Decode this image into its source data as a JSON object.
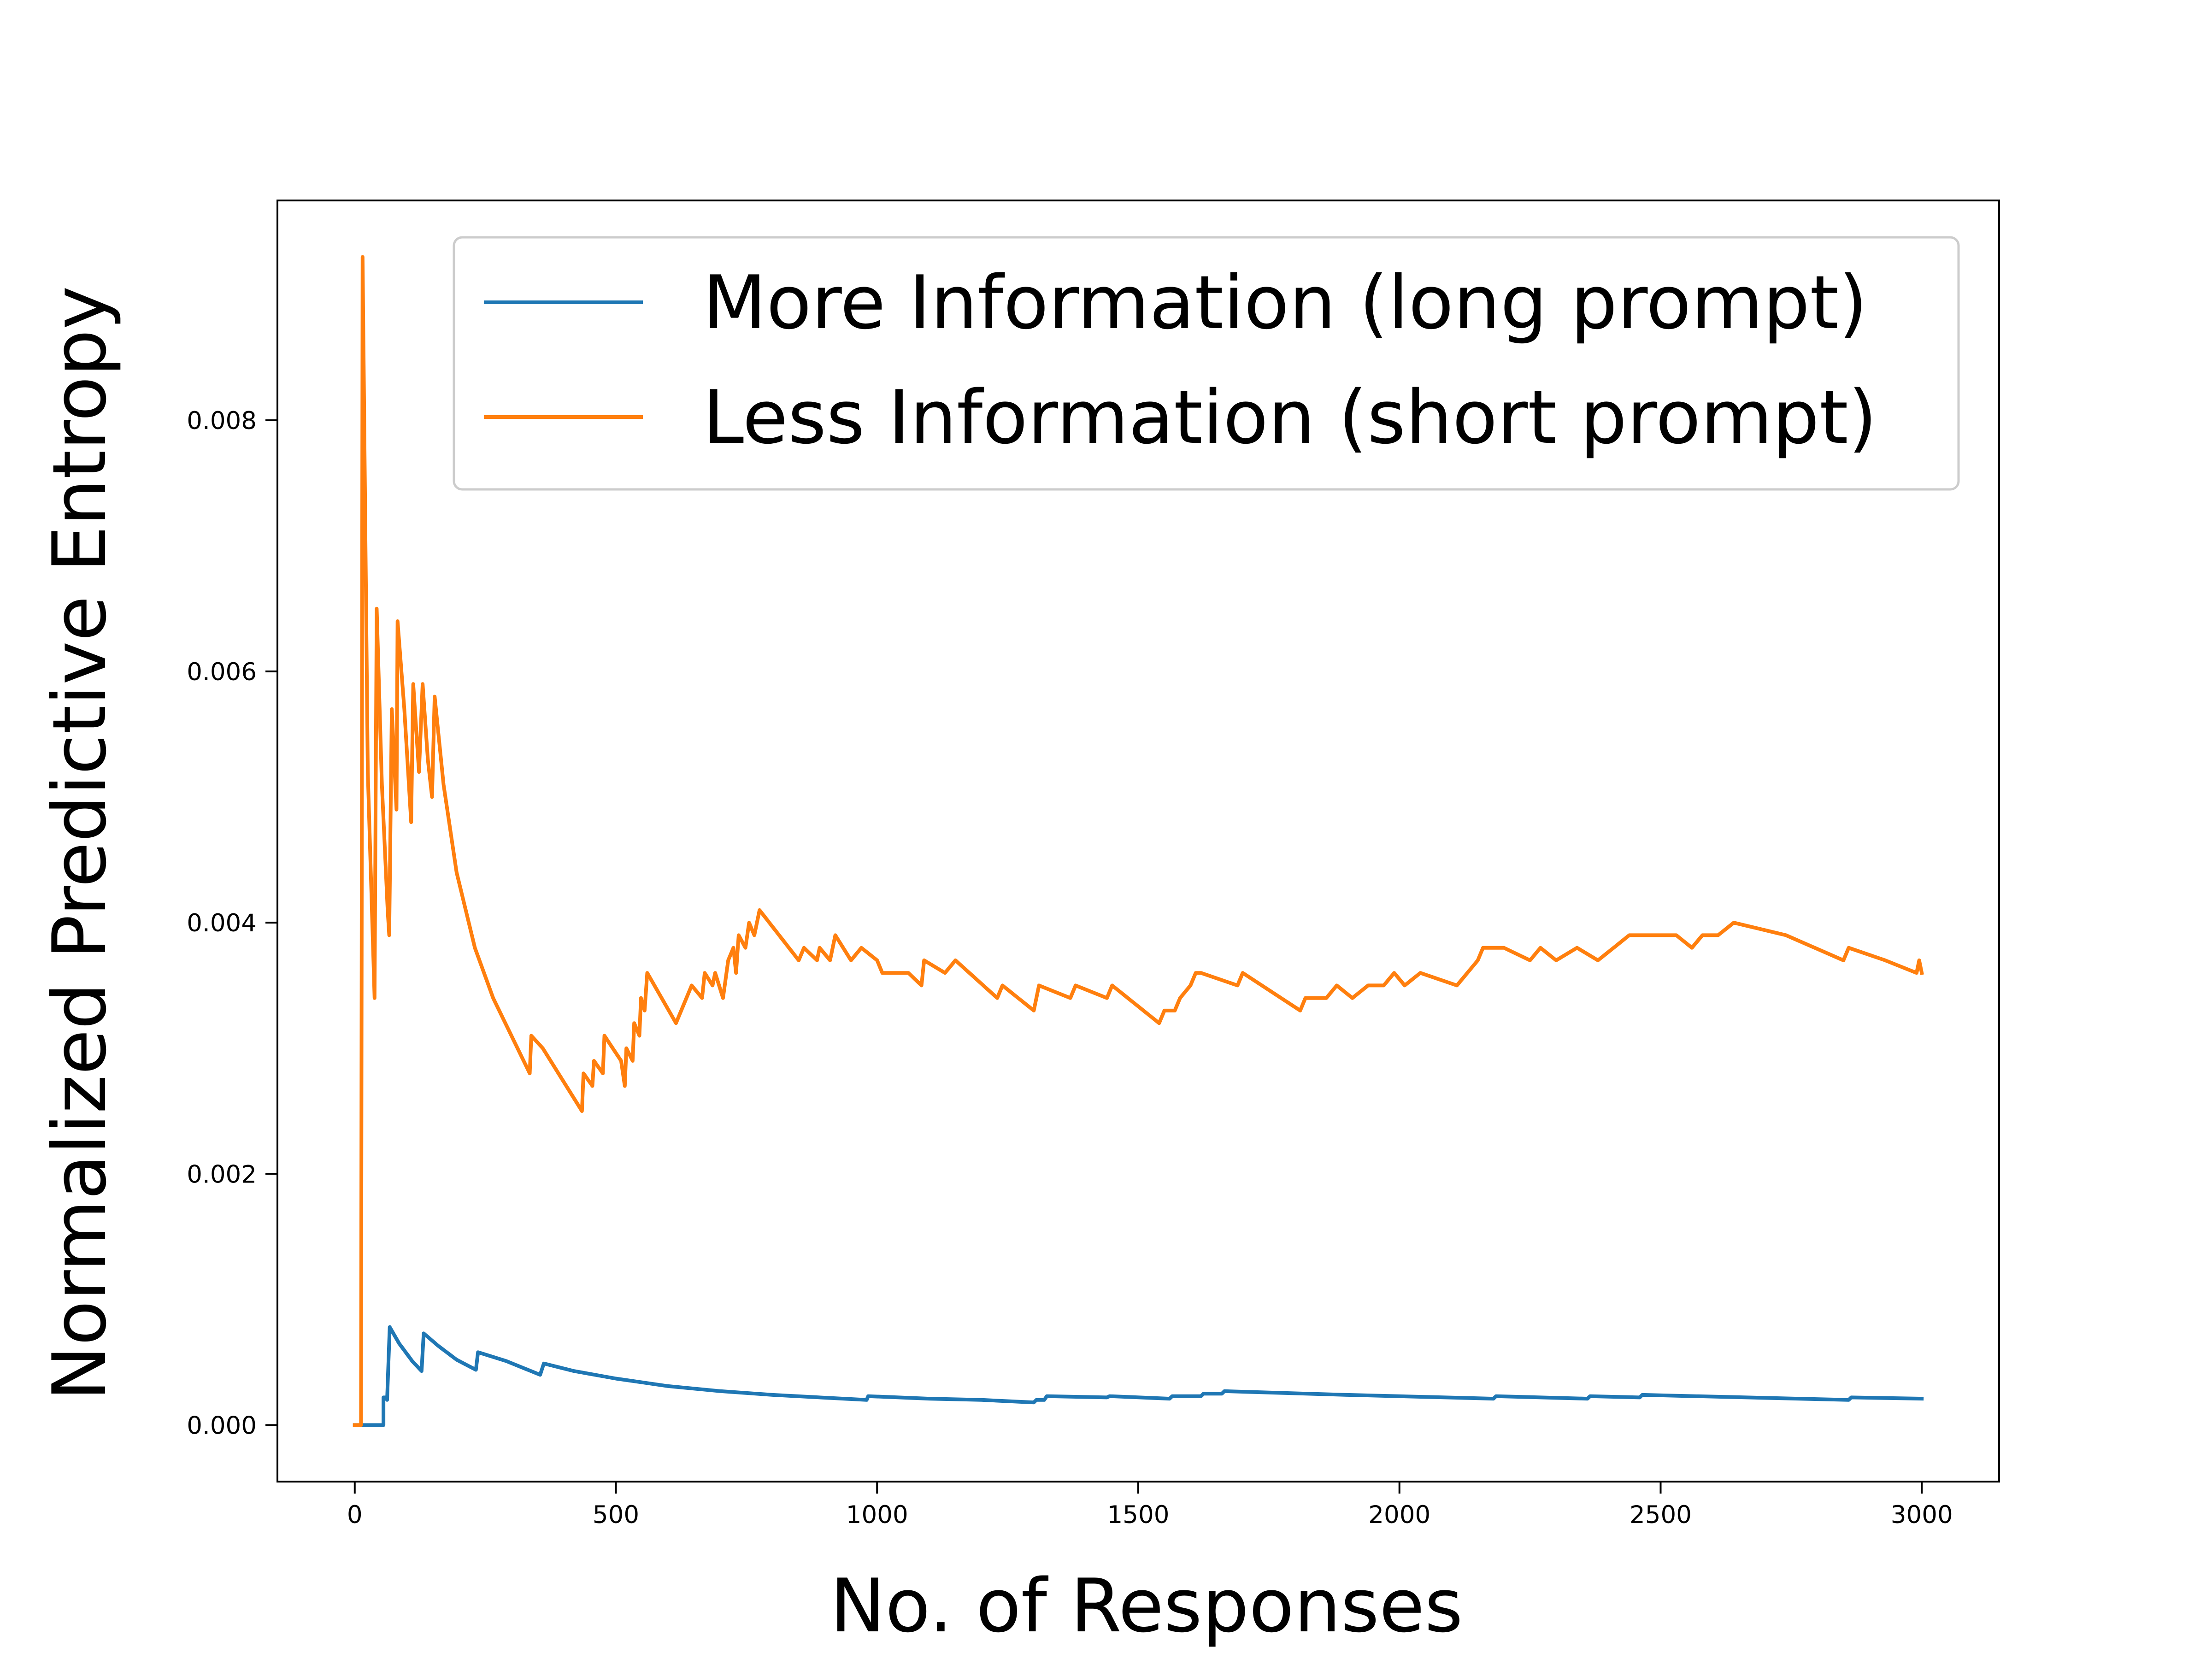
{
  "chart_data": {
    "type": "line",
    "title": "",
    "xlabel": "No. of Responses",
    "ylabel": "Normalized Predictive Entropy",
    "xlim": [
      -148,
      3148
    ],
    "ylim": [
      -0.00045,
      0.00975
    ],
    "x_ticks": [
      0,
      500,
      1000,
      1500,
      2000,
      2500,
      3000
    ],
    "y_ticks": [
      0.0,
      0.002,
      0.004,
      0.006,
      0.008
    ],
    "x_tick_labels": [
      "0",
      "500",
      "1000",
      "1500",
      "2000",
      "2500",
      "3000"
    ],
    "y_tick_labels": [
      "0.000",
      "0.002",
      "0.004",
      "0.006",
      "0.008"
    ],
    "grid": false,
    "legend_position": "top-right",
    "series": [
      {
        "name": "More Information (long prompt)",
        "color": "#1f77b4",
        "points": [
          [
            0,
            0.0
          ],
          [
            55,
            0.0
          ],
          [
            55,
            0.00022
          ],
          [
            62,
            0.00022
          ],
          [
            62,
            0.0002
          ],
          [
            67,
            0.00078
          ],
          [
            85,
            0.00065
          ],
          [
            110,
            0.00051
          ],
          [
            128,
            0.00043
          ],
          [
            132,
            0.00073
          ],
          [
            160,
            0.00063
          ],
          [
            195,
            0.00052
          ],
          [
            232,
            0.00044
          ],
          [
            236,
            0.00058
          ],
          [
            290,
            0.00051
          ],
          [
            355,
            0.0004
          ],
          [
            362,
            0.00049
          ],
          [
            420,
            0.00043
          ],
          [
            500,
            0.00037
          ],
          [
            600,
            0.00031
          ],
          [
            700,
            0.00027
          ],
          [
            800,
            0.00024
          ],
          [
            980,
            0.0002
          ],
          [
            983,
            0.00023
          ],
          [
            1100,
            0.00021
          ],
          [
            1200,
            0.0002
          ],
          [
            1300,
            0.00018
          ],
          [
            1305,
            0.0002
          ],
          [
            1320,
            0.0002
          ],
          [
            1325,
            0.00023
          ],
          [
            1440,
            0.00022
          ],
          [
            1445,
            0.00023
          ],
          [
            1560,
            0.00021
          ],
          [
            1565,
            0.00023
          ],
          [
            1620,
            0.00023
          ],
          [
            1625,
            0.00025
          ],
          [
            1660,
            0.00025
          ],
          [
            1665,
            0.00027
          ],
          [
            1900,
            0.00024
          ],
          [
            2180,
            0.00021
          ],
          [
            2185,
            0.00023
          ],
          [
            2360,
            0.00021
          ],
          [
            2365,
            0.00023
          ],
          [
            2460,
            0.00022
          ],
          [
            2465,
            0.00024
          ],
          [
            2860,
            0.0002
          ],
          [
            2865,
            0.00022
          ],
          [
            3000,
            0.00021
          ]
        ]
      },
      {
        "name": "Less Information (short prompt)",
        "color": "#ff7f0e",
        "points": [
          [
            0,
            0.0
          ],
          [
            12,
            0.0
          ],
          [
            15,
            0.0093
          ],
          [
            25,
            0.0052
          ],
          [
            30,
            0.0045
          ],
          [
            38,
            0.0034
          ],
          [
            42,
            0.0065
          ],
          [
            52,
            0.0051
          ],
          [
            63,
            0.0041
          ],
          [
            66,
            0.0039
          ],
          [
            71,
            0.0057
          ],
          [
            80,
            0.0049
          ],
          [
            82,
            0.0064
          ],
          [
            95,
            0.0057
          ],
          [
            108,
            0.0048
          ],
          [
            112,
            0.0059
          ],
          [
            123,
            0.0052
          ],
          [
            130,
            0.0059
          ],
          [
            140,
            0.0053
          ],
          [
            148,
            0.005
          ],
          [
            153,
            0.0058
          ],
          [
            170,
            0.0051
          ],
          [
            195,
            0.0044
          ],
          [
            230,
            0.0038
          ],
          [
            265,
            0.0034
          ],
          [
            300,
            0.0031
          ],
          [
            335,
            0.0028
          ],
          [
            338,
            0.0031
          ],
          [
            360,
            0.003
          ],
          [
            390,
            0.0028
          ],
          [
            435,
            0.0025
          ],
          [
            438,
            0.0028
          ],
          [
            455,
            0.0027
          ],
          [
            458,
            0.0029
          ],
          [
            475,
            0.0028
          ],
          [
            478,
            0.0031
          ],
          [
            510,
            0.0029
          ],
          [
            517,
            0.0027
          ],
          [
            520,
            0.003
          ],
          [
            532,
            0.0029
          ],
          [
            535,
            0.0032
          ],
          [
            545,
            0.0031
          ],
          [
            548,
            0.0034
          ],
          [
            555,
            0.0033
          ],
          [
            560,
            0.0036
          ],
          [
            615,
            0.0032
          ],
          [
            645,
            0.0035
          ],
          [
            665,
            0.0034
          ],
          [
            670,
            0.0036
          ],
          [
            685,
            0.0035
          ],
          [
            690,
            0.0036
          ],
          [
            705,
            0.0034
          ],
          [
            715,
            0.0037
          ],
          [
            725,
            0.0038
          ],
          [
            730,
            0.0036
          ],
          [
            735,
            0.0039
          ],
          [
            748,
            0.0038
          ],
          [
            755,
            0.004
          ],
          [
            765,
            0.0039
          ],
          [
            775,
            0.0041
          ],
          [
            850,
            0.0037
          ],
          [
            860,
            0.0038
          ],
          [
            885,
            0.0037
          ],
          [
            890,
            0.0038
          ],
          [
            910,
            0.0037
          ],
          [
            920,
            0.0039
          ],
          [
            950,
            0.0037
          ],
          [
            970,
            0.0038
          ],
          [
            1000,
            0.0037
          ],
          [
            1010,
            0.0036
          ],
          [
            1060,
            0.0036
          ],
          [
            1085,
            0.0035
          ],
          [
            1090,
            0.0037
          ],
          [
            1130,
            0.0036
          ],
          [
            1150,
            0.0037
          ],
          [
            1230,
            0.0034
          ],
          [
            1240,
            0.0035
          ],
          [
            1300,
            0.0033
          ],
          [
            1310,
            0.0035
          ],
          [
            1370,
            0.0034
          ],
          [
            1380,
            0.0035
          ],
          [
            1440,
            0.0034
          ],
          [
            1450,
            0.0035
          ],
          [
            1540,
            0.0032
          ],
          [
            1550,
            0.0033
          ],
          [
            1570,
            0.0033
          ],
          [
            1580,
            0.0034
          ],
          [
            1600,
            0.0035
          ],
          [
            1610,
            0.0036
          ],
          [
            1620,
            0.0036
          ],
          [
            1690,
            0.0035
          ],
          [
            1700,
            0.0036
          ],
          [
            1810,
            0.0033
          ],
          [
            1820,
            0.0034
          ],
          [
            1860,
            0.0034
          ],
          [
            1880,
            0.0035
          ],
          [
            1910,
            0.0034
          ],
          [
            1940,
            0.0035
          ],
          [
            1970,
            0.0035
          ],
          [
            1990,
            0.0036
          ],
          [
            2010,
            0.0035
          ],
          [
            2040,
            0.0036
          ],
          [
            2110,
            0.0035
          ],
          [
            2130,
            0.0036
          ],
          [
            2150,
            0.0037
          ],
          [
            2160,
            0.0038
          ],
          [
            2180,
            0.0038
          ],
          [
            2200,
            0.0038
          ],
          [
            2250,
            0.0037
          ],
          [
            2270,
            0.0038
          ],
          [
            2300,
            0.0037
          ],
          [
            2340,
            0.0038
          ],
          [
            2380,
            0.0037
          ],
          [
            2410,
            0.0038
          ],
          [
            2440,
            0.0039
          ],
          [
            2470,
            0.0039
          ],
          [
            2500,
            0.0039
          ],
          [
            2530,
            0.0039
          ],
          [
            2560,
            0.0038
          ],
          [
            2580,
            0.0039
          ],
          [
            2610,
            0.0039
          ],
          [
            2640,
            0.004
          ],
          [
            2740,
            0.0039
          ],
          [
            2850,
            0.0037
          ],
          [
            2860,
            0.0038
          ],
          [
            2930,
            0.0037
          ],
          [
            2990,
            0.0036
          ],
          [
            2995,
            0.0037
          ],
          [
            3000,
            0.0036
          ]
        ]
      }
    ]
  }
}
